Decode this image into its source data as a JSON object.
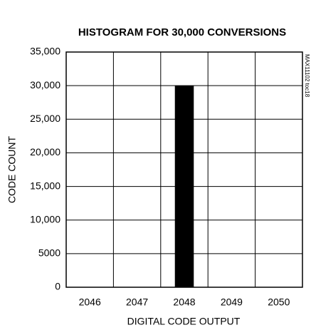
{
  "chart_data": {
    "type": "bar",
    "title": "HISTOGRAM FOR 30,000 CONVERSIONS",
    "note": "MAX11102 toc18",
    "x_label": "DIGITAL CODE OUTPUT",
    "y_label": "CODE COUNT",
    "categories": [
      "2046",
      "2047",
      "2048",
      "2049",
      "2050"
    ],
    "values": [
      0,
      0,
      30000,
      0,
      0
    ],
    "color": "#000000",
    "ylim": [
      0,
      35000
    ],
    "yticks": [
      0,
      5000,
      {
        "value": 10000,
        "label": "10,000"
      },
      {
        "value": 15000,
        "label": "15,000"
      },
      {
        "value": 20000,
        "label": "20,000"
      },
      {
        "value": 25000,
        "label": "25,000"
      },
      {
        "value": 30000,
        "label": "30,000"
      },
      {
        "value": 35000,
        "label": "35,000"
      }
    ],
    "grid": true
  }
}
